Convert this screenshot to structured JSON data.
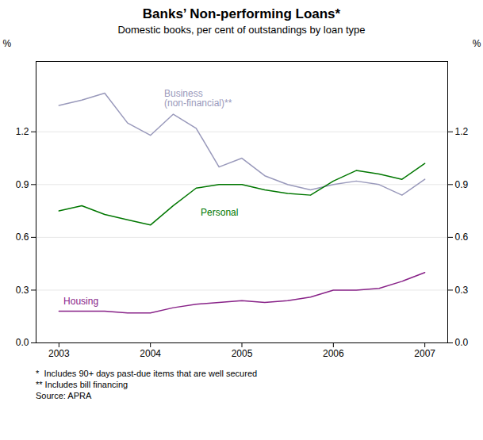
{
  "chart_data": {
    "type": "line",
    "title": "Banks’ Non-performing Loans*",
    "subtitle": "Domestic books, per cent of outstandings by loan type",
    "footnotes": [
      "*  Includes 90+ days past-due items that are well secured",
      "** Includes bill financing",
      "Source: APRA"
    ],
    "ylabel": "%",
    "y2label": "%",
    "x": [
      2003.0,
      2003.25,
      2003.5,
      2003.75,
      2004.0,
      2004.25,
      2004.5,
      2004.75,
      2005.0,
      2005.25,
      2005.5,
      2005.75,
      2006.0,
      2006.25,
      2006.5,
      2006.75,
      2007.0
    ],
    "xlim": [
      2002.75,
      2007.25
    ],
    "xticks": [
      2003,
      2004,
      2005,
      2006,
      2007
    ],
    "ylim": [
      0.0,
      1.6
    ],
    "yticks": [
      {
        "value": 0.0,
        "label": "0.0"
      },
      0.3,
      0.6,
      0.9,
      1.2
    ],
    "y2lim": [
      0.0,
      1.6
    ],
    "y2ticks": [
      {
        "value": 0.0,
        "label": "0.0"
      },
      0.3,
      0.6,
      0.9,
      1.2
    ],
    "grid": true,
    "series": [
      {
        "name": "Business\n(non-financial)**",
        "color": "#9999bb",
        "values": [
          1.35,
          1.38,
          1.42,
          1.25,
          1.18,
          1.3,
          1.22,
          1.0,
          1.05,
          0.95,
          0.9,
          0.87,
          0.9,
          0.92,
          0.9,
          0.84,
          0.93
        ]
      },
      {
        "name": "Personal",
        "color": "#007700",
        "values": [
          0.75,
          0.78,
          0.73,
          0.7,
          0.67,
          0.78,
          0.88,
          0.9,
          0.9,
          0.87,
          0.85,
          0.84,
          0.92,
          0.98,
          0.96,
          0.93,
          1.02
        ]
      },
      {
        "name": "Housing",
        "color": "#882288",
        "values": [
          0.18,
          0.18,
          0.18,
          0.17,
          0.17,
          0.2,
          0.22,
          0.23,
          0.24,
          0.23,
          0.24,
          0.26,
          0.3,
          0.3,
          0.31,
          0.35,
          0.4
        ]
      }
    ],
    "annotations": [
      {
        "text": "Business\n(non-financial)**",
        "x": 2004.15,
        "y": 1.44,
        "color": "#9999bb"
      },
      {
        "text": "Personal",
        "x": 2004.55,
        "y": 0.76,
        "color": "#007700"
      },
      {
        "text": "Housing",
        "x": 2003.05,
        "y": 0.255,
        "color": "#882288"
      }
    ]
  }
}
